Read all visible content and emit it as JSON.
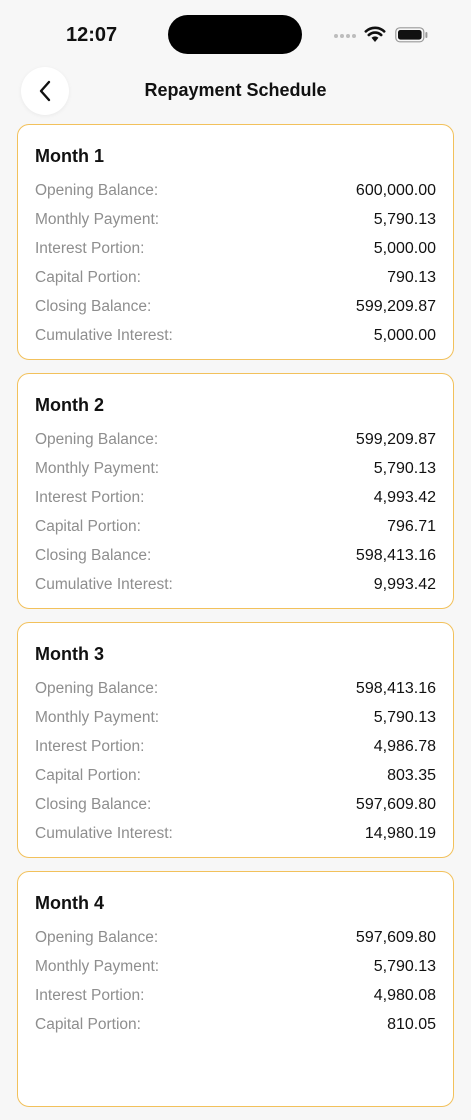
{
  "status": {
    "time": "12:07"
  },
  "header": {
    "title": "Repayment Schedule"
  },
  "labels": {
    "opening": "Opening Balance:",
    "payment": "Monthly Payment:",
    "interest": "Interest Portion:",
    "capital": "Capital Portion:",
    "closing": "Closing Balance:",
    "cumulative": "Cumulative Interest:"
  },
  "months": [
    {
      "title": "Month 1",
      "opening": "600,000.00",
      "payment": "5,790.13",
      "interest": "5,000.00",
      "capital": "790.13",
      "closing": "599,209.87",
      "cumulative": "5,000.00"
    },
    {
      "title": "Month 2",
      "opening": "599,209.87",
      "payment": "5,790.13",
      "interest": "4,993.42",
      "capital": "796.71",
      "closing": "598,413.16",
      "cumulative": "9,993.42"
    },
    {
      "title": "Month 3",
      "opening": "598,413.16",
      "payment": "5,790.13",
      "interest": "4,986.78",
      "capital": "803.35",
      "closing": "597,609.80",
      "cumulative": "14,980.19"
    },
    {
      "title": "Month 4",
      "opening": "597,609.80",
      "payment": "5,790.13",
      "interest": "4,980.08",
      "capital": "810.05",
      "closing": "",
      "cumulative": ""
    }
  ]
}
